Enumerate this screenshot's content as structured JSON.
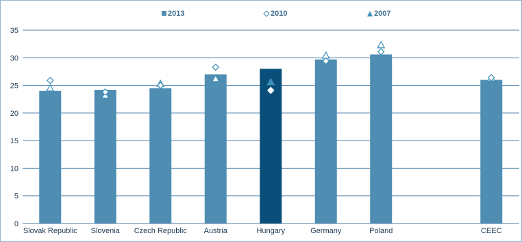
{
  "chart_data": {
    "type": "bar",
    "categories": [
      "Slovak Republic",
      "Slovenia",
      "Czech Republic",
      "Austria",
      "Hungary",
      "Germany",
      "Poland",
      "",
      "CEEC"
    ],
    "series": [
      {
        "name": "2013",
        "marker": "bar",
        "values": [
          24.0,
          24.2,
          24.5,
          27.0,
          28.0,
          29.7,
          30.6,
          null,
          26.0
        ]
      },
      {
        "name": "2010",
        "marker": "diamond",
        "values": [
          25.9,
          23.8,
          25.0,
          28.3,
          24.1,
          29.4,
          31.1,
          null,
          26.4
        ]
      },
      {
        "name": "2007",
        "marker": "triangle",
        "values": [
          24.5,
          23.2,
          25.3,
          26.2,
          25.6,
          30.4,
          32.3,
          null,
          26.3
        ]
      }
    ],
    "ylim": [
      0,
      35
    ],
    "yticks": [
      0,
      5,
      10,
      15,
      20,
      25,
      30,
      35
    ],
    "highlight_category": "Hungary",
    "grid": true,
    "legend_placement": "top-center",
    "title": "",
    "xlabel": "",
    "ylabel": ""
  },
  "colors": {
    "bar": "#4f8db3",
    "highlight": "#0a4f79",
    "grid": "#4a7ea6",
    "marker_outline": "#3d8fb8",
    "legend": "#3d6f93"
  },
  "legend": [
    {
      "icon": "square-icon",
      "label": "2013"
    },
    {
      "icon": "diamond-icon",
      "label": "2010"
    },
    {
      "icon": "triangle-icon",
      "label": "2007"
    }
  ]
}
